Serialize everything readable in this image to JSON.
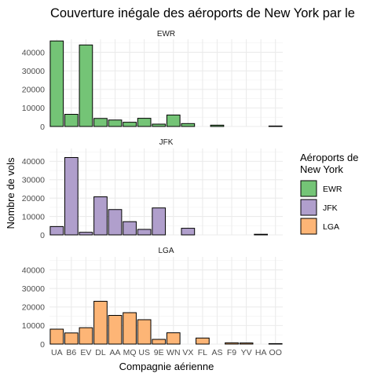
{
  "chart_data": {
    "type": "bar",
    "title": "Couverture inégale des aéroports de New York par le",
    "xlabel": "Compagnie aérienne",
    "ylabel": "Nombre de vols",
    "categories": [
      "UA",
      "B6",
      "EV",
      "DL",
      "AA",
      "MQ",
      "US",
      "9E",
      "WN",
      "VX",
      "FL",
      "AS",
      "F9",
      "YV",
      "HA",
      "OO"
    ],
    "ylim": [
      0,
      47000
    ],
    "yticks": [
      0,
      10000,
      20000,
      30000,
      40000
    ],
    "grid": true,
    "legend": {
      "title_lines": [
        "Aéroports de",
        "New York"
      ],
      "position": "right"
    },
    "facets": [
      {
        "name": "EWR",
        "color": "#74c476",
        "values": [
          46087,
          6557,
          43939,
          4342,
          3487,
          2276,
          4405,
          1268,
          6188,
          1566,
          null,
          714,
          null,
          null,
          null,
          6
        ]
      },
      {
        "name": "JFK",
        "color": "#b09fcc",
        "values": [
          4534,
          42076,
          1408,
          20701,
          13783,
          7193,
          2995,
          14651,
          null,
          3596,
          null,
          null,
          null,
          null,
          342,
          null
        ]
      },
      {
        "name": "LGA",
        "color": "#fdb576",
        "values": [
          8044,
          6002,
          8826,
          23067,
          15459,
          16928,
          13136,
          2541,
          6087,
          null,
          3260,
          null,
          685,
          601,
          null,
          26
        ]
      }
    ]
  }
}
